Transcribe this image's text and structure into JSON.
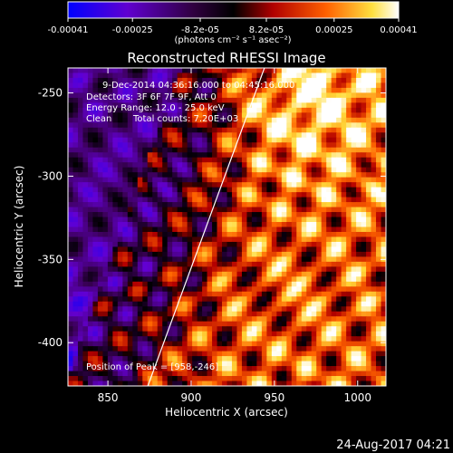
{
  "chart_data": {
    "type": "heatmap",
    "title": "Reconstructed RHESSI Image",
    "xlabel": "Heliocentric X (arcsec)",
    "ylabel": "Heliocentric Y (arcsec)",
    "xlim": [
      826,
      1017
    ],
    "ylim": [
      -426,
      -235
    ],
    "x_ticks": [
      850,
      900,
      950,
      1000
    ],
    "y_ticks": [
      -250,
      -300,
      -350,
      -400
    ],
    "colorbar": {
      "ticks": [
        "-0.00041",
        "-0.00025",
        "-8.2e-05",
        "8.2e-05",
        "0.00025",
        "0.00041"
      ],
      "tick_values": [
        -0.00041,
        -0.00025,
        -8.2e-05,
        8.2e-05,
        0.00025,
        0.00041
      ],
      "range": [
        -0.00041,
        0.00041
      ],
      "unit_label": "(photons cm⁻² s⁻¹ asec⁻²)",
      "colormap": [
        "#0000ff",
        "#8000c0",
        "#000000",
        "#c00000",
        "#ff8000",
        "#ffff60",
        "#ffffff"
      ]
    },
    "annotations": [
      "9-Dec-2014 04:36:16.000 to 04:45:16.000",
      "Detectors: 3F 6F 7F 9F, Att 0",
      "Energy Range: 12.0 - 25.0 keV",
      "Clean",
      "Total counts: 7.20E+03",
      "Position of Peak = [958,-246]"
    ],
    "peak": [
      958,
      -246
    ],
    "limb_line": [
      [
        874,
        -426
      ],
      [
        944,
        -235
      ]
    ]
  },
  "timestamp": "24-Aug-2017 04:21"
}
